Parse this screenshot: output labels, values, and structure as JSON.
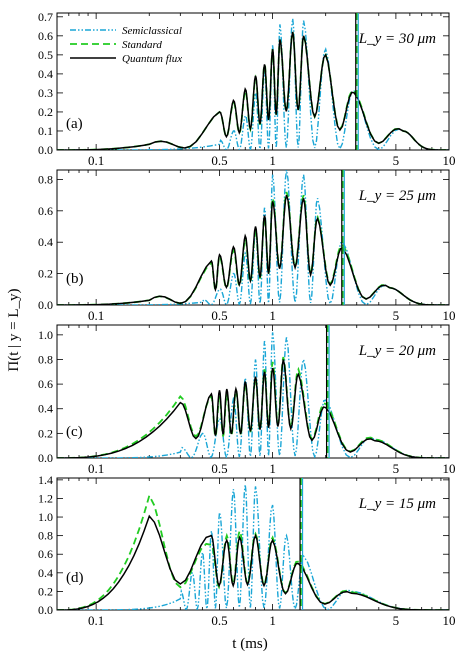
{
  "figure": {
    "xlabel": "t (ms)",
    "ylabel": "Π(t | y = L_y)"
  },
  "legend": [
    {
      "name": "Semiclassical",
      "color": "#1aa6d6",
      "style": "dashdot"
    },
    {
      "name": "Standard",
      "color": "#22cc22",
      "style": "dashed"
    },
    {
      "name": "Quantum flux",
      "color": "#000000",
      "style": "solid"
    }
  ],
  "colors": {
    "semiclassical": "#1aa6d6",
    "standard": "#22cc22",
    "quantum": "#000000"
  },
  "x_ticks": [
    "0.1",
    "0.5",
    "1",
    "5",
    "10"
  ],
  "chart_data": [
    {
      "type": "line",
      "panel": "(a)",
      "ly_label": "L_y = 30 μm",
      "xscale": "log",
      "xlim": [
        0.06,
        10
      ],
      "ylim": [
        0,
        0.72
      ],
      "yticks": [
        "0.0",
        "0.1",
        "0.2",
        "0.3",
        "0.4",
        "0.5",
        "0.6",
        "0.7"
      ],
      "yvals": [
        0,
        0.1,
        0.2,
        0.3,
        0.4,
        0.5,
        0.6,
        0.7
      ],
      "marker_x": 3.0,
      "series": [
        {
          "name": "Quantum flux",
          "x": [
            0.2,
            0.5,
            0.6,
            0.7,
            0.8,
            0.9,
            1.0,
            1.1,
            1.3,
            1.5,
            2.0,
            2.9,
            5.5
          ],
          "peaks": [
            0.03,
            0.2,
            0.26,
            0.32,
            0.39,
            0.45,
            0.53,
            0.58,
            0.62,
            0.6,
            0.5,
            0.3,
            0.1
          ]
        },
        {
          "name": "Standard",
          "x": [
            0.2,
            0.5,
            0.6,
            0.7,
            0.8,
            0.9,
            1.0,
            1.1,
            1.3,
            1.5,
            2.0,
            2.9,
            5.5
          ],
          "peaks": [
            0.03,
            0.2,
            0.25,
            0.31,
            0.38,
            0.45,
            0.53,
            0.58,
            0.62,
            0.6,
            0.5,
            0.31,
            0.1
          ]
        },
        {
          "name": "Semiclassical",
          "x": [
            0.5,
            0.6,
            0.7,
            0.8,
            0.9,
            1.0,
            1.1,
            1.3,
            1.5,
            2.0,
            2.9,
            5.5
          ],
          "peaks": [
            0.05,
            0.1,
            0.18,
            0.3,
            0.42,
            0.55,
            0.66,
            0.69,
            0.68,
            0.53,
            0.31,
            0.1
          ]
        }
      ]
    },
    {
      "type": "line",
      "panel": "(b)",
      "ly_label": "L_y = 25 μm",
      "xscale": "log",
      "xlim": [
        0.06,
        10
      ],
      "ylim": [
        0,
        0.86
      ],
      "yticks": [
        "0.0",
        "0.2",
        "0.4",
        "0.6",
        "0.8"
      ],
      "yvals": [
        0,
        0.2,
        0.4,
        0.6,
        0.8
      ],
      "marker_x": 2.5,
      "series": [
        {
          "name": "Quantum flux",
          "x": [
            0.2,
            0.45,
            0.5,
            0.6,
            0.7,
            0.8,
            0.9,
            1.0,
            1.2,
            1.5,
            1.8,
            2.5,
            4.6
          ],
          "peaks": [
            0.03,
            0.28,
            0.32,
            0.37,
            0.44,
            0.5,
            0.57,
            0.66,
            0.7,
            0.68,
            0.55,
            0.36,
            0.11
          ]
        },
        {
          "name": "Standard",
          "x": [
            0.2,
            0.45,
            0.5,
            0.6,
            0.7,
            0.8,
            0.9,
            1.0,
            1.2,
            1.5,
            1.8,
            2.5,
            4.6
          ],
          "peaks": [
            0.03,
            0.27,
            0.31,
            0.35,
            0.42,
            0.48,
            0.56,
            0.68,
            0.72,
            0.7,
            0.56,
            0.38,
            0.11
          ]
        },
        {
          "name": "Semiclassical",
          "x": [
            0.4,
            0.5,
            0.6,
            0.7,
            0.8,
            0.9,
            1.0,
            1.2,
            1.5,
            1.8,
            2.5,
            4.6
          ],
          "peaks": [
            0.03,
            0.1,
            0.2,
            0.33,
            0.48,
            0.62,
            0.83,
            0.86,
            0.83,
            0.68,
            0.4,
            0.11
          ]
        }
      ]
    },
    {
      "type": "line",
      "panel": "(c)",
      "ly_label": "L_y = 20 μm",
      "xscale": "log",
      "xlim": [
        0.06,
        10
      ],
      "ylim": [
        0,
        1.08
      ],
      "yticks": [
        "0.0",
        "0.2",
        "0.4",
        "0.6",
        "0.8",
        "1.0"
      ],
      "yvals": [
        0,
        0.2,
        0.4,
        0.6,
        0.8,
        1.0
      ],
      "marker_x": 2.05,
      "series": [
        {
          "name": "Quantum flux",
          "x": [
            0.3,
            0.45,
            0.5,
            0.55,
            0.62,
            0.7,
            0.8,
            0.9,
            1.0,
            1.15,
            1.4,
            2.0,
            3.8
          ],
          "peaks": [
            0.45,
            0.52,
            0.55,
            0.56,
            0.56,
            0.62,
            0.66,
            0.7,
            0.73,
            0.8,
            0.68,
            0.41,
            0.14
          ]
        },
        {
          "name": "Standard",
          "x": [
            0.3,
            0.45,
            0.5,
            0.55,
            0.62,
            0.7,
            0.8,
            0.9,
            1.0,
            1.15,
            1.4,
            2.0,
            3.8
          ],
          "peaks": [
            0.5,
            0.5,
            0.5,
            0.52,
            0.55,
            0.6,
            0.65,
            0.72,
            0.78,
            0.82,
            0.72,
            0.44,
            0.15
          ]
        },
        {
          "name": "Semiclassical",
          "x": [
            0.3,
            0.4,
            0.5,
            0.6,
            0.7,
            0.8,
            0.9,
            1.0,
            1.2,
            1.5,
            2.0,
            3.8
          ],
          "peaks": [
            0.08,
            0.2,
            0.32,
            0.48,
            0.65,
            0.8,
            0.95,
            1.02,
            0.98,
            0.8,
            0.47,
            0.15
          ]
        }
      ]
    },
    {
      "type": "line",
      "panel": "(d)",
      "ly_label": "L_y = 15 μm",
      "xscale": "log",
      "xlim": [
        0.06,
        10
      ],
      "ylim": [
        0,
        1.42
      ],
      "yticks": [
        "0.0",
        "0.2",
        "0.4",
        "0.6",
        "0.8",
        "1.0",
        "1.2",
        "1.4"
      ],
      "yvals": [
        0,
        0.2,
        0.4,
        0.6,
        0.8,
        1.0,
        1.2,
        1.4
      ],
      "marker_x": 1.45,
      "series": [
        {
          "name": "Quantum flux",
          "x": [
            0.2,
            0.45,
            0.55,
            0.65,
            0.8,
            1.0,
            1.4,
            2.8
          ],
          "peaks": [
            1.01,
            0.8,
            0.75,
            0.78,
            0.8,
            0.75,
            0.5,
            0.18
          ]
        },
        {
          "name": "Standard",
          "x": [
            0.2,
            0.45,
            0.55,
            0.65,
            0.8,
            1.0,
            1.4,
            2.8
          ],
          "peaks": [
            1.23,
            0.7,
            0.8,
            0.85,
            0.82,
            0.78,
            0.52,
            0.19
          ]
        },
        {
          "name": "Semiclassical",
          "x": [
            0.3,
            0.35,
            0.4,
            0.45,
            0.5,
            0.6,
            0.7,
            0.8,
            1.0,
            1.2,
            1.5,
            2.8
          ],
          "peaks": [
            0.2,
            0.4,
            0.62,
            0.85,
            1.05,
            1.3,
            1.35,
            1.33,
            1.13,
            0.8,
            0.58,
            0.2
          ]
        }
      ]
    }
  ]
}
